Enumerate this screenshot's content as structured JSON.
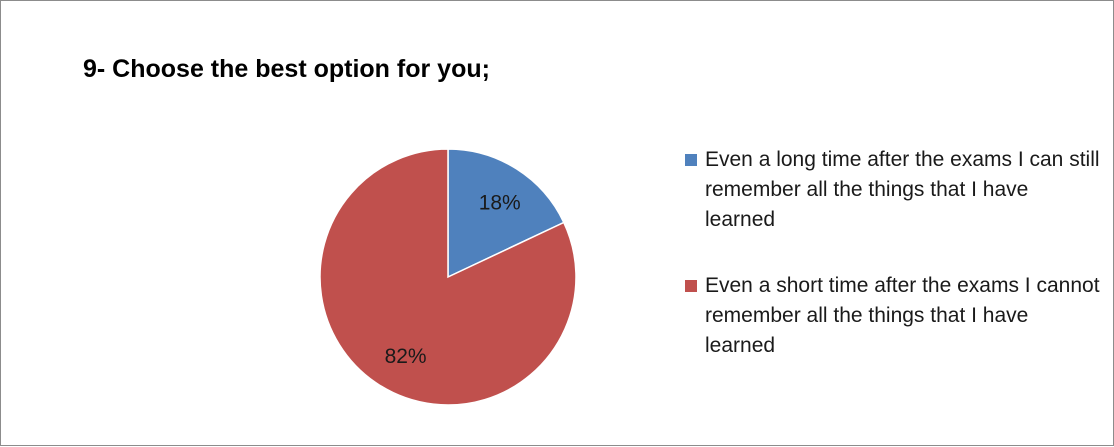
{
  "chart_data": {
    "type": "pie",
    "title": "9- Choose the best option for you;",
    "categories": [
      "Even a long time after the exams I can still remember all the things that I have learned",
      "Even a short time after the exams I cannot remember all the things that I have learned"
    ],
    "values": [
      18,
      82
    ],
    "data_labels": [
      "18%",
      "82%"
    ],
    "colors": [
      "#4f81bd",
      "#c0504d"
    ],
    "legend_position": "right"
  }
}
